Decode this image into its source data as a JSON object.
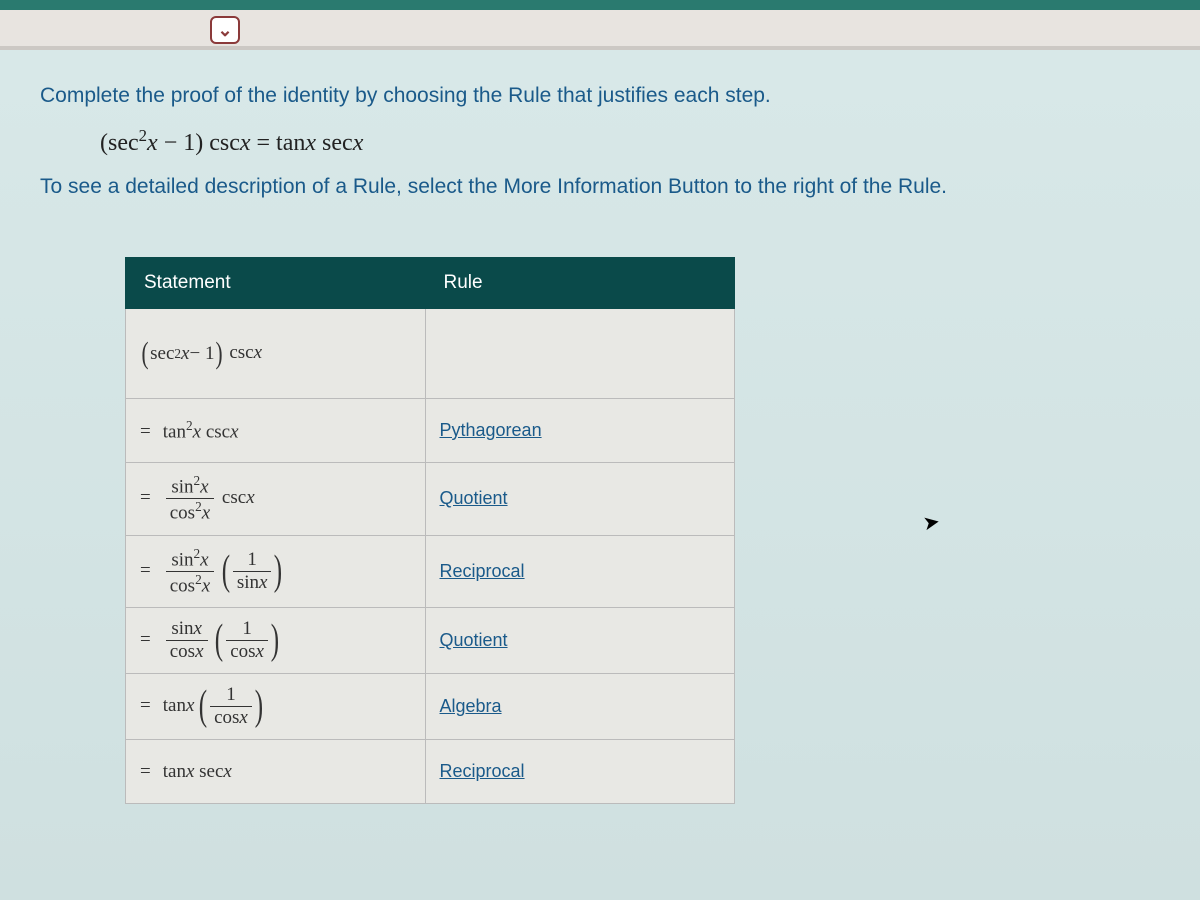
{
  "instructions": {
    "line1": "Complete the proof of the identity by choosing the Rule that justifies each step.",
    "line2": "To see a detailed description of a Rule, select the More Information Button to the right of the Rule."
  },
  "identity": {
    "lhs": "(sec²x − 1) csc x",
    "eq": "=",
    "rhs": "tan x  sec x"
  },
  "colors": {
    "topbar": "#2a7a6f",
    "header_bg": "#0a4a4a",
    "instr_text": "#1a5a8a",
    "panel_bg": "#d8e8e8",
    "cell_bg": "#e8e8e4",
    "border": "#bbbbbb",
    "chevron": "#8b3a3a"
  },
  "table": {
    "headers": {
      "statement": "Statement",
      "rule": "Rule"
    },
    "rows": [
      {
        "statement_html": "(sec²x − 1) cscx",
        "rule": ""
      },
      {
        "statement_html": "= tan²x cscx",
        "rule": "Pythagorean"
      },
      {
        "statement_html": "= (sin²x / cos²x) cscx",
        "rule": "Quotient"
      },
      {
        "statement_html": "= (sin²x / cos²x)(1 / sinx)",
        "rule": "Reciprocal"
      },
      {
        "statement_html": "= (sinx / cosx)(1 / cosx)",
        "rule": "Quotient"
      },
      {
        "statement_html": "= tanx (1 / cosx)",
        "rule": "Algebra"
      },
      {
        "statement_html": "= tanx secx",
        "rule": "Reciprocal"
      }
    ]
  },
  "fontsize": {
    "instr": 21,
    "identity": 24,
    "header": 19,
    "cell": 19,
    "rule": 18
  }
}
